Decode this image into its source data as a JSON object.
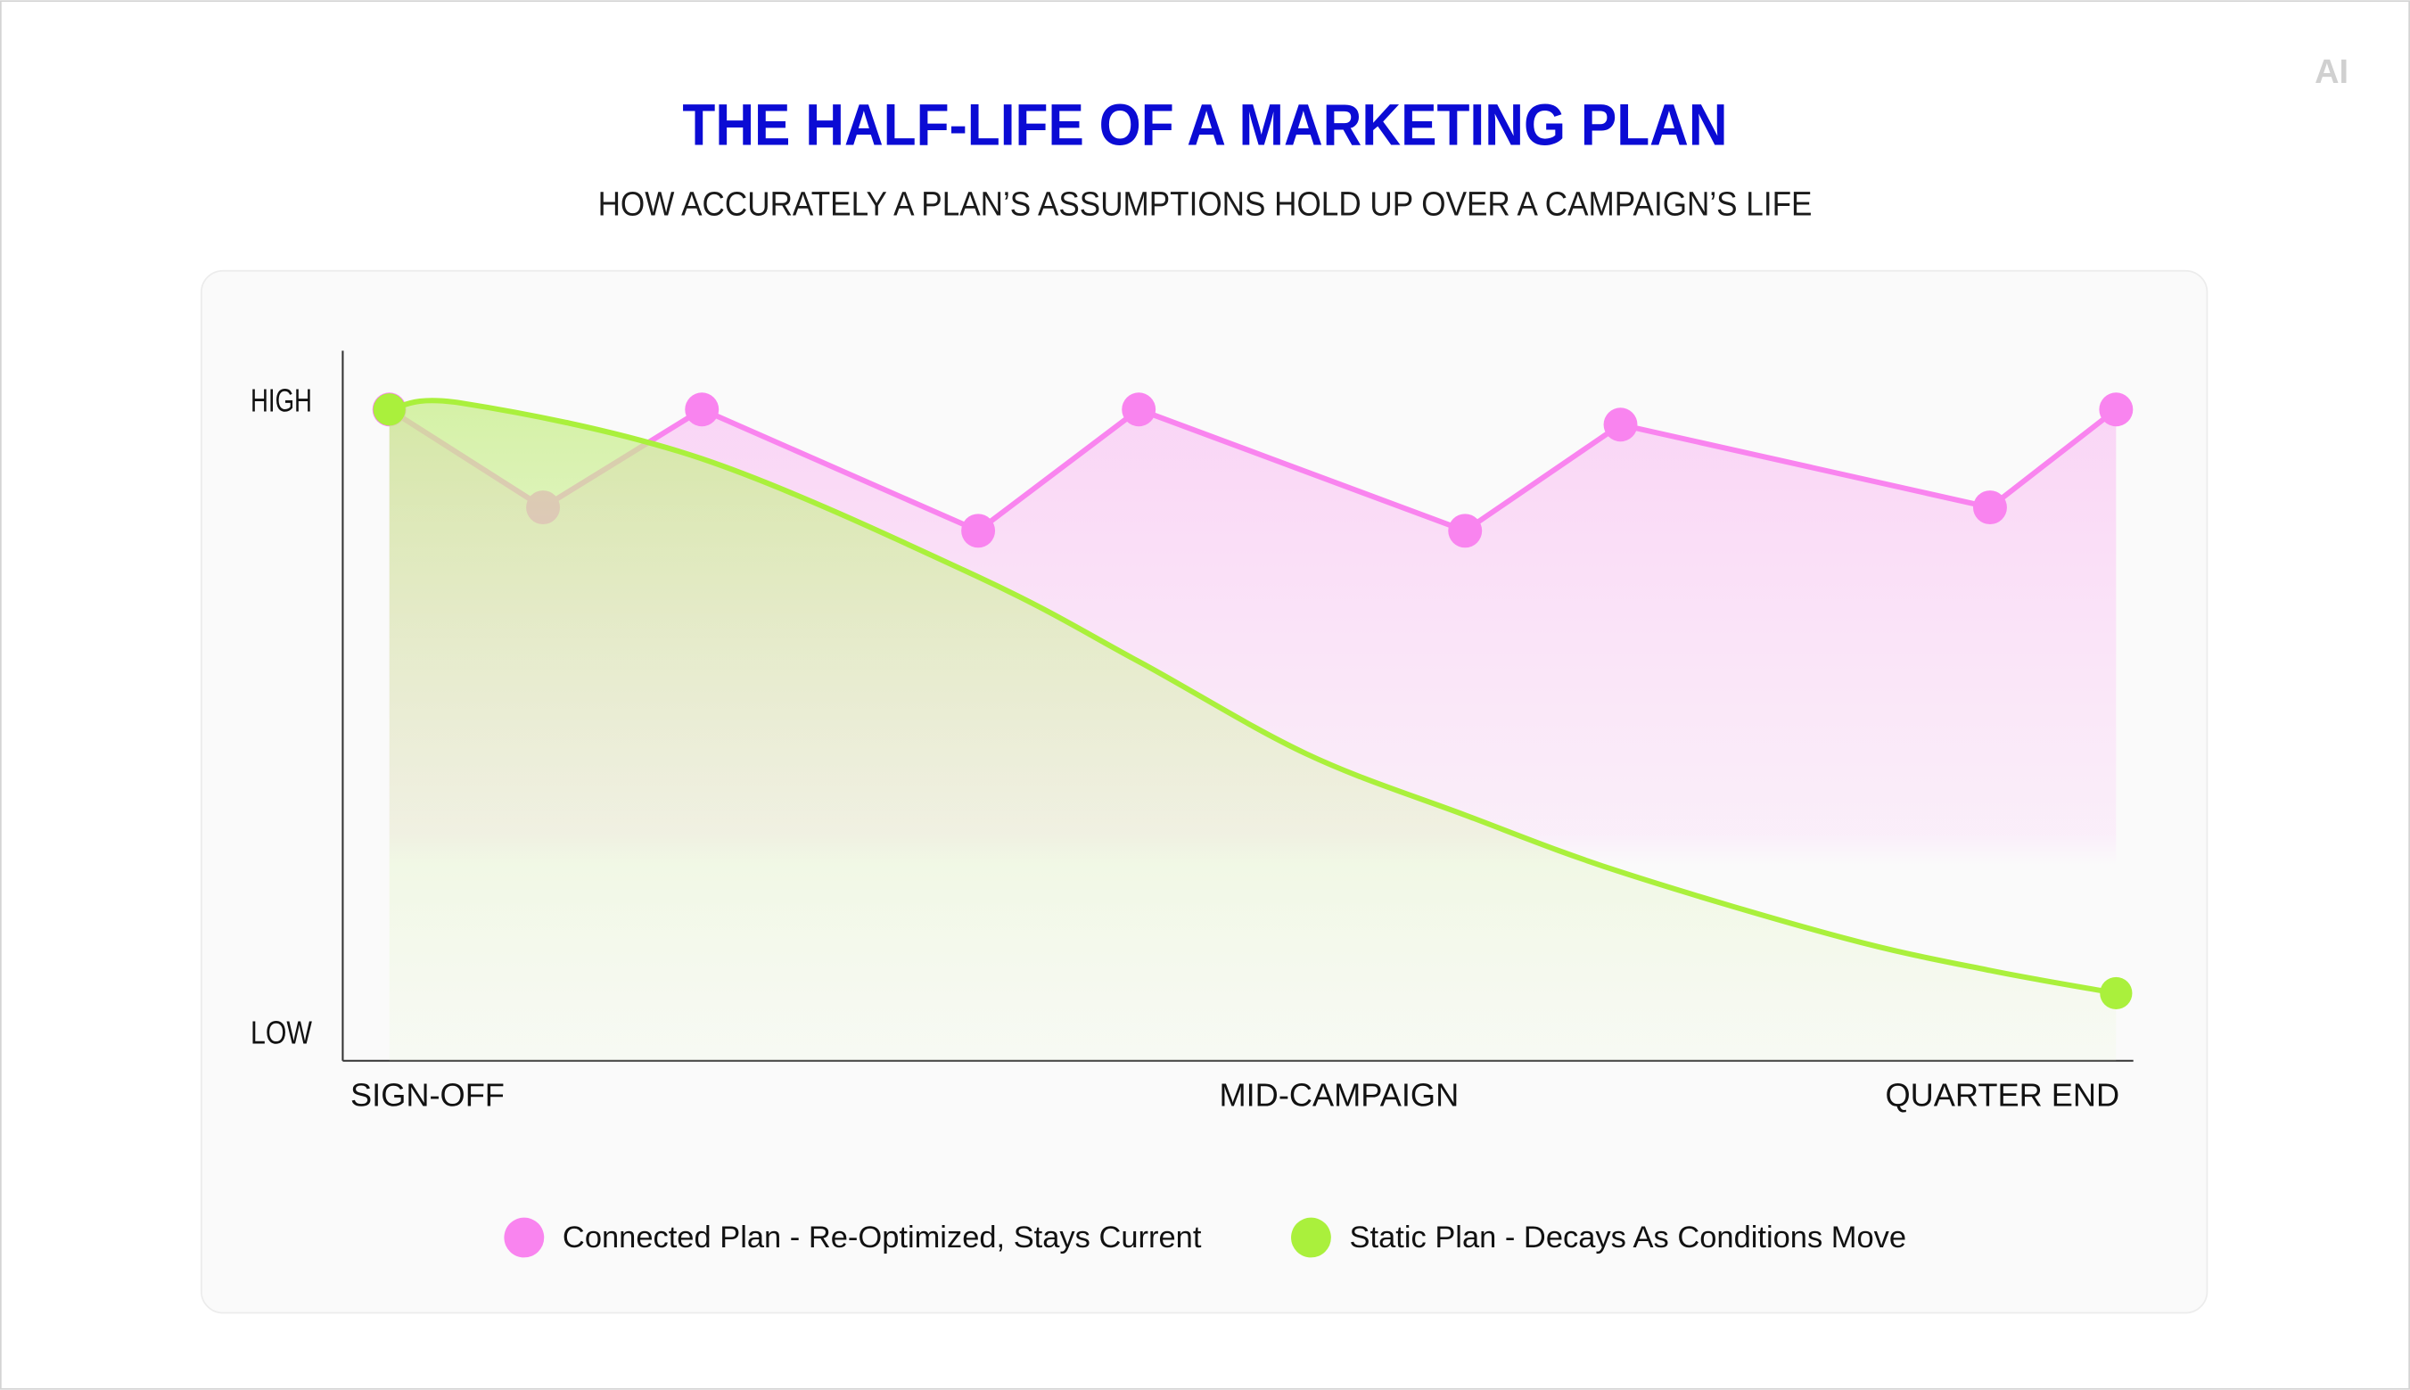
{
  "logo": "AI",
  "chart_data": {
    "type": "line",
    "title": "THE HALF-LIFE OF A MARKETING PLAN",
    "subtitle": "HOW ACCURATELY A PLAN’S ASSUMPTIONS HOLD UP OVER A CAMPAIGN’S LIFE",
    "xlim": [
      -2.7,
      101
    ],
    "xticks": [
      {
        "value": 0,
        "label": "SIGN-OFF"
      },
      {
        "value": 55,
        "label": "MID-CAMPAIGN"
      },
      {
        "value": 100,
        "label": "QUARTER END"
      }
    ],
    "ylim": [
      -4.1,
      108.3
    ],
    "yticks": [
      {
        "value": 0,
        "label": "LOW"
      },
      {
        "value": 100,
        "label": "HIGH"
      }
    ],
    "grid": false,
    "legend": "bottom",
    "series": [
      {
        "name": "Connected Plan - Re-Optimized, Stays Current",
        "color": "#f984ef",
        "smooth": false,
        "markers": "all",
        "x": [
          0,
          8.9,
          18.1,
          34.1,
          43.4,
          62.3,
          71.3,
          92.7,
          100
        ],
        "values": [
          99,
          83.5,
          99,
          79.8,
          99,
          79.8,
          96.6,
          83.5,
          99
        ]
      },
      {
        "name": "Static Plan - Decays As Conditions Move",
        "color": "#aaf03c",
        "smooth": true,
        "markers": "ends",
        "x": [
          0,
          4.2,
          18.1,
          34.1,
          43.4,
          53.1,
          62.3,
          71.3,
          84.3,
          92.7,
          100
        ],
        "values": [
          99,
          100,
          91.2,
          72.5,
          59.1,
          44.5,
          34.8,
          25.8,
          15.3,
          10.2,
          6.6
        ]
      }
    ]
  }
}
